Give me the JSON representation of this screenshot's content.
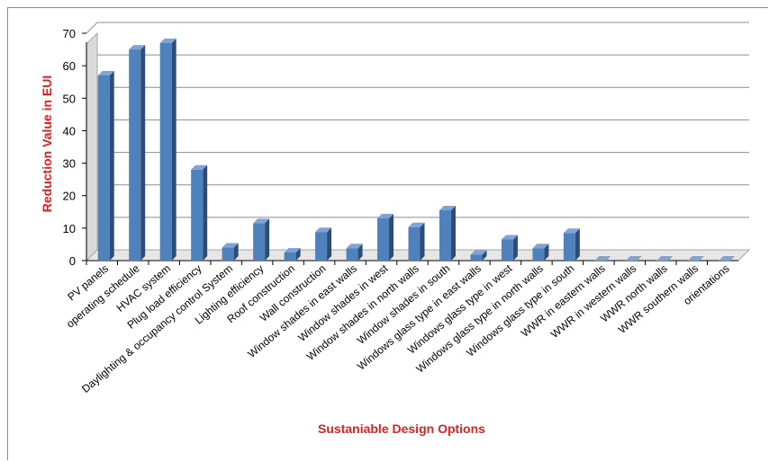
{
  "chart_data": {
    "type": "bar",
    "title": "",
    "xlabel": "Sustaniable Design Options",
    "ylabel": "Reduction Value in EUI",
    "ylim": [
      0,
      70
    ],
    "yticks": [
      0,
      10,
      20,
      30,
      40,
      50,
      60,
      70
    ],
    "grid": true,
    "legend": "none",
    "bar_color": "#4f81bd",
    "categories": [
      "PV panels",
      "operating schedule",
      "HVAC system",
      "Plug load efficiency",
      "Daylighting & occupancy control System",
      "Lighting efficiency",
      "Roof construction",
      "Wall construction",
      "Window shades in east walls",
      "Window shades in west",
      "Window shades in  north walls",
      "Window shades in south",
      "Windows glass type in  east walls",
      "Windows glass type in west",
      "Windows glass type in  north walls",
      "Windows glass type in south",
      "WWR in eastern walls",
      "WWR in western walls",
      "WWR north walls",
      "WWR southern walls",
      "orientations"
    ],
    "values": [
      57,
      65,
      67,
      28,
      4,
      11.5,
      2.5,
      8.8,
      3.8,
      13,
      10.3,
      15.5,
      1.8,
      6.5,
      3.8,
      8.5,
      0,
      0,
      0,
      0,
      0
    ]
  }
}
